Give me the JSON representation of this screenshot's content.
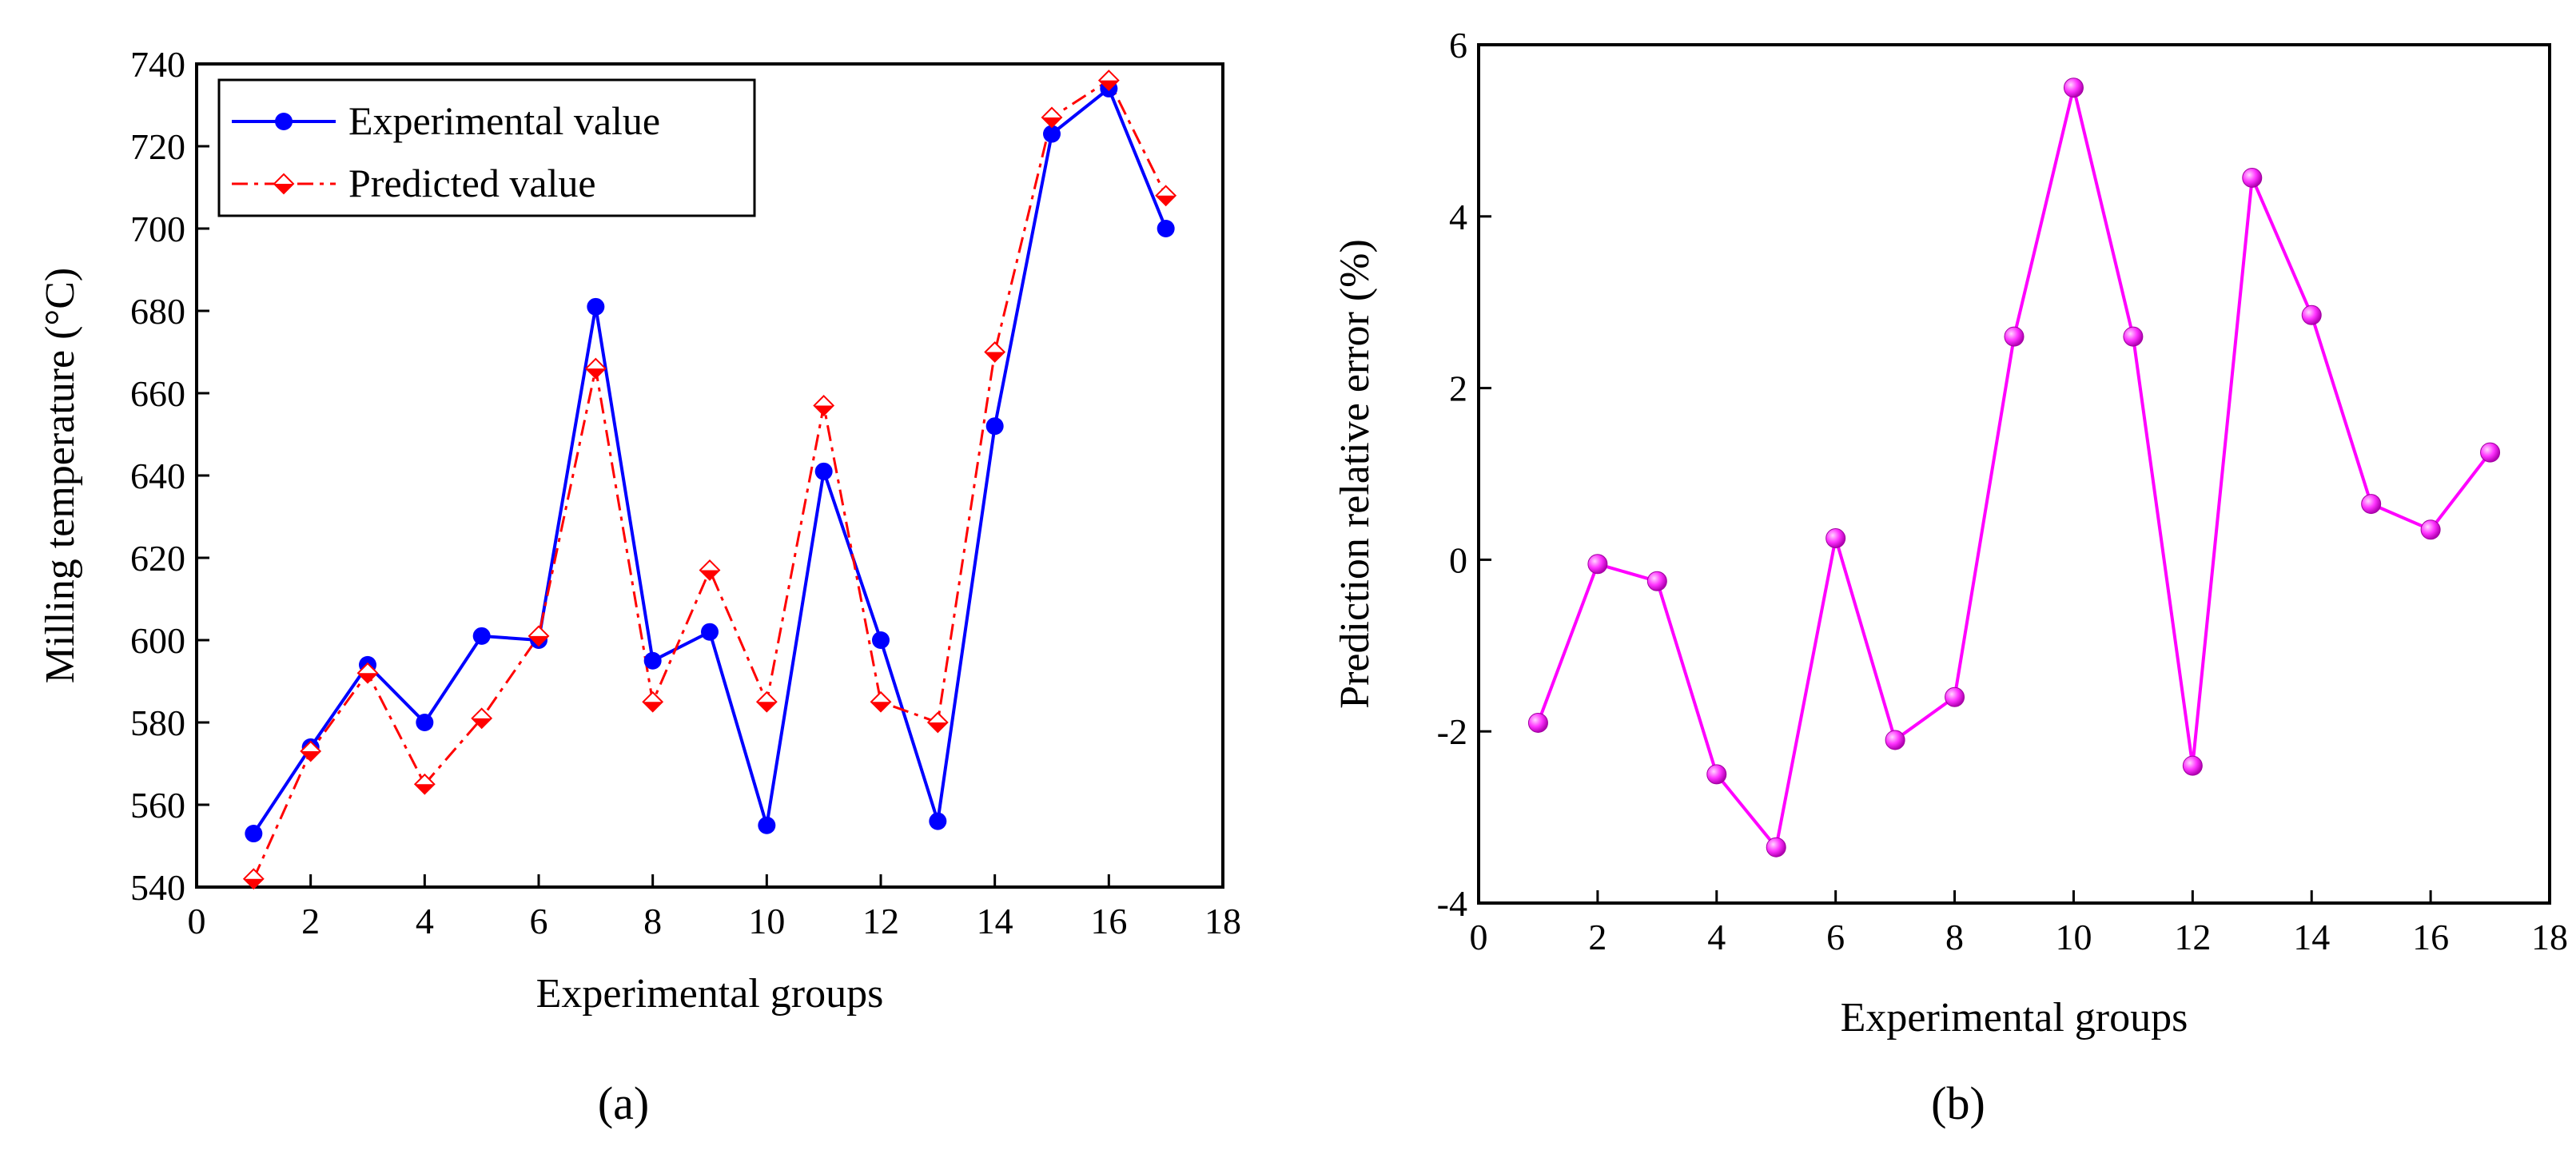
{
  "chart_data": [
    {
      "type": "line",
      "panel_label": "(a)",
      "title": "",
      "xlabel": "Experimental groups",
      "ylabel": "Milling temperature (°C)",
      "xlim": [
        0,
        18
      ],
      "ylim": [
        540,
        740
      ],
      "xticks": [
        0,
        2,
        4,
        6,
        8,
        10,
        12,
        14,
        16,
        18
      ],
      "yticks": [
        540,
        560,
        580,
        600,
        620,
        640,
        660,
        680,
        700,
        720,
        740
      ],
      "legend_position": "top-left",
      "x": [
        1,
        2,
        3,
        4,
        5,
        6,
        7,
        8,
        9,
        10,
        11,
        12,
        13,
        14,
        15,
        16,
        17
      ],
      "series": [
        {
          "name": "Experimental value",
          "color": "#0000ff",
          "style": "solid",
          "marker": "circle",
          "values": [
            553,
            574,
            594,
            580,
            601,
            600,
            681,
            595,
            602,
            555,
            641,
            600,
            556,
            652,
            723,
            734,
            700
          ]
        },
        {
          "name": "Predicted value",
          "color": "#ff0000",
          "style": "dash-dot",
          "marker": "diamond",
          "values": [
            542,
            573,
            592,
            565,
            581,
            601,
            666,
            585,
            617,
            585,
            657,
            585,
            580,
            670,
            727,
            736,
            708
          ]
        }
      ]
    },
    {
      "type": "line",
      "panel_label": "(b)",
      "title": "",
      "xlabel": "Experimental groups",
      "ylabel": "Prediction relative error (%)",
      "xlim": [
        0,
        18
      ],
      "ylim": [
        -4,
        6
      ],
      "xticks": [
        0,
        2,
        4,
        6,
        8,
        10,
        12,
        14,
        16,
        18
      ],
      "yticks": [
        -4,
        -2,
        0,
        2,
        4,
        6
      ],
      "x": [
        1,
        2,
        3,
        4,
        5,
        6,
        7,
        8,
        9,
        10,
        11,
        12,
        13,
        14,
        15,
        16,
        17
      ],
      "series": [
        {
          "name": "Prediction relative error",
          "color": "#ff00ff",
          "style": "solid",
          "marker": "sphere",
          "values": [
            -1.9,
            -0.05,
            -0.25,
            -2.5,
            -3.35,
            0.25,
            -2.1,
            -1.6,
            2.6,
            5.5,
            2.6,
            -2.4,
            4.45,
            2.85,
            0.65,
            0.35,
            1.25
          ]
        }
      ]
    }
  ]
}
